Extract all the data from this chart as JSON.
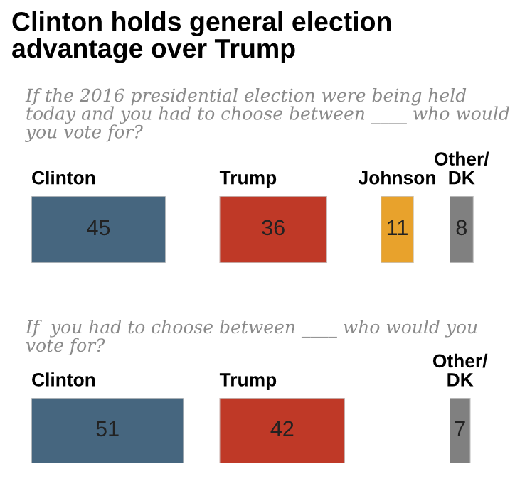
{
  "chart_data": [
    {
      "type": "bar",
      "orientation": "horizontal",
      "title": "Clinton holds general election advantage over Trump",
      "subtitle": "If the 2016 presidential election were being held today and you had to choose between ____ who would you vote for?",
      "categories": [
        "Clinton"
      ],
      "values": [
        45
      ],
      "colors": [
        "#46667f"
      ],
      "data_labels": true
    },
    {
      "type": "bar",
      "orientation": "horizontal",
      "categories": [
        "Trump"
      ],
      "values": [
        36
      ],
      "colors": [
        "#bf3927"
      ],
      "data_labels": true
    },
    {
      "type": "bar",
      "orientation": "horizontal",
      "categories": [
        "Johnson"
      ],
      "values": [
        11
      ],
      "colors": [
        "#e8a22c"
      ],
      "data_labels": true
    },
    {
      "type": "bar",
      "orientation": "horizontal",
      "categories": [
        "Other/DK"
      ],
      "values": [
        8
      ],
      "colors": [
        "#808080"
      ],
      "data_labels": true
    },
    {
      "type": "bar",
      "orientation": "horizontal",
      "subtitle": "If  you had to choose between ____ who would you vote for?",
      "categories": [
        "Clinton"
      ],
      "values": [
        51
      ],
      "colors": [
        "#46667f"
      ],
      "data_labels": true
    },
    {
      "type": "bar",
      "orientation": "horizontal",
      "categories": [
        "Trump"
      ],
      "values": [
        42
      ],
      "colors": [
        "#bf3927"
      ],
      "data_labels": true
    },
    {
      "type": "bar",
      "orientation": "horizontal",
      "categories": [
        "Other/DK"
      ],
      "values": [
        7
      ],
      "colors": [
        "#808080"
      ],
      "data_labels": true
    }
  ]
}
